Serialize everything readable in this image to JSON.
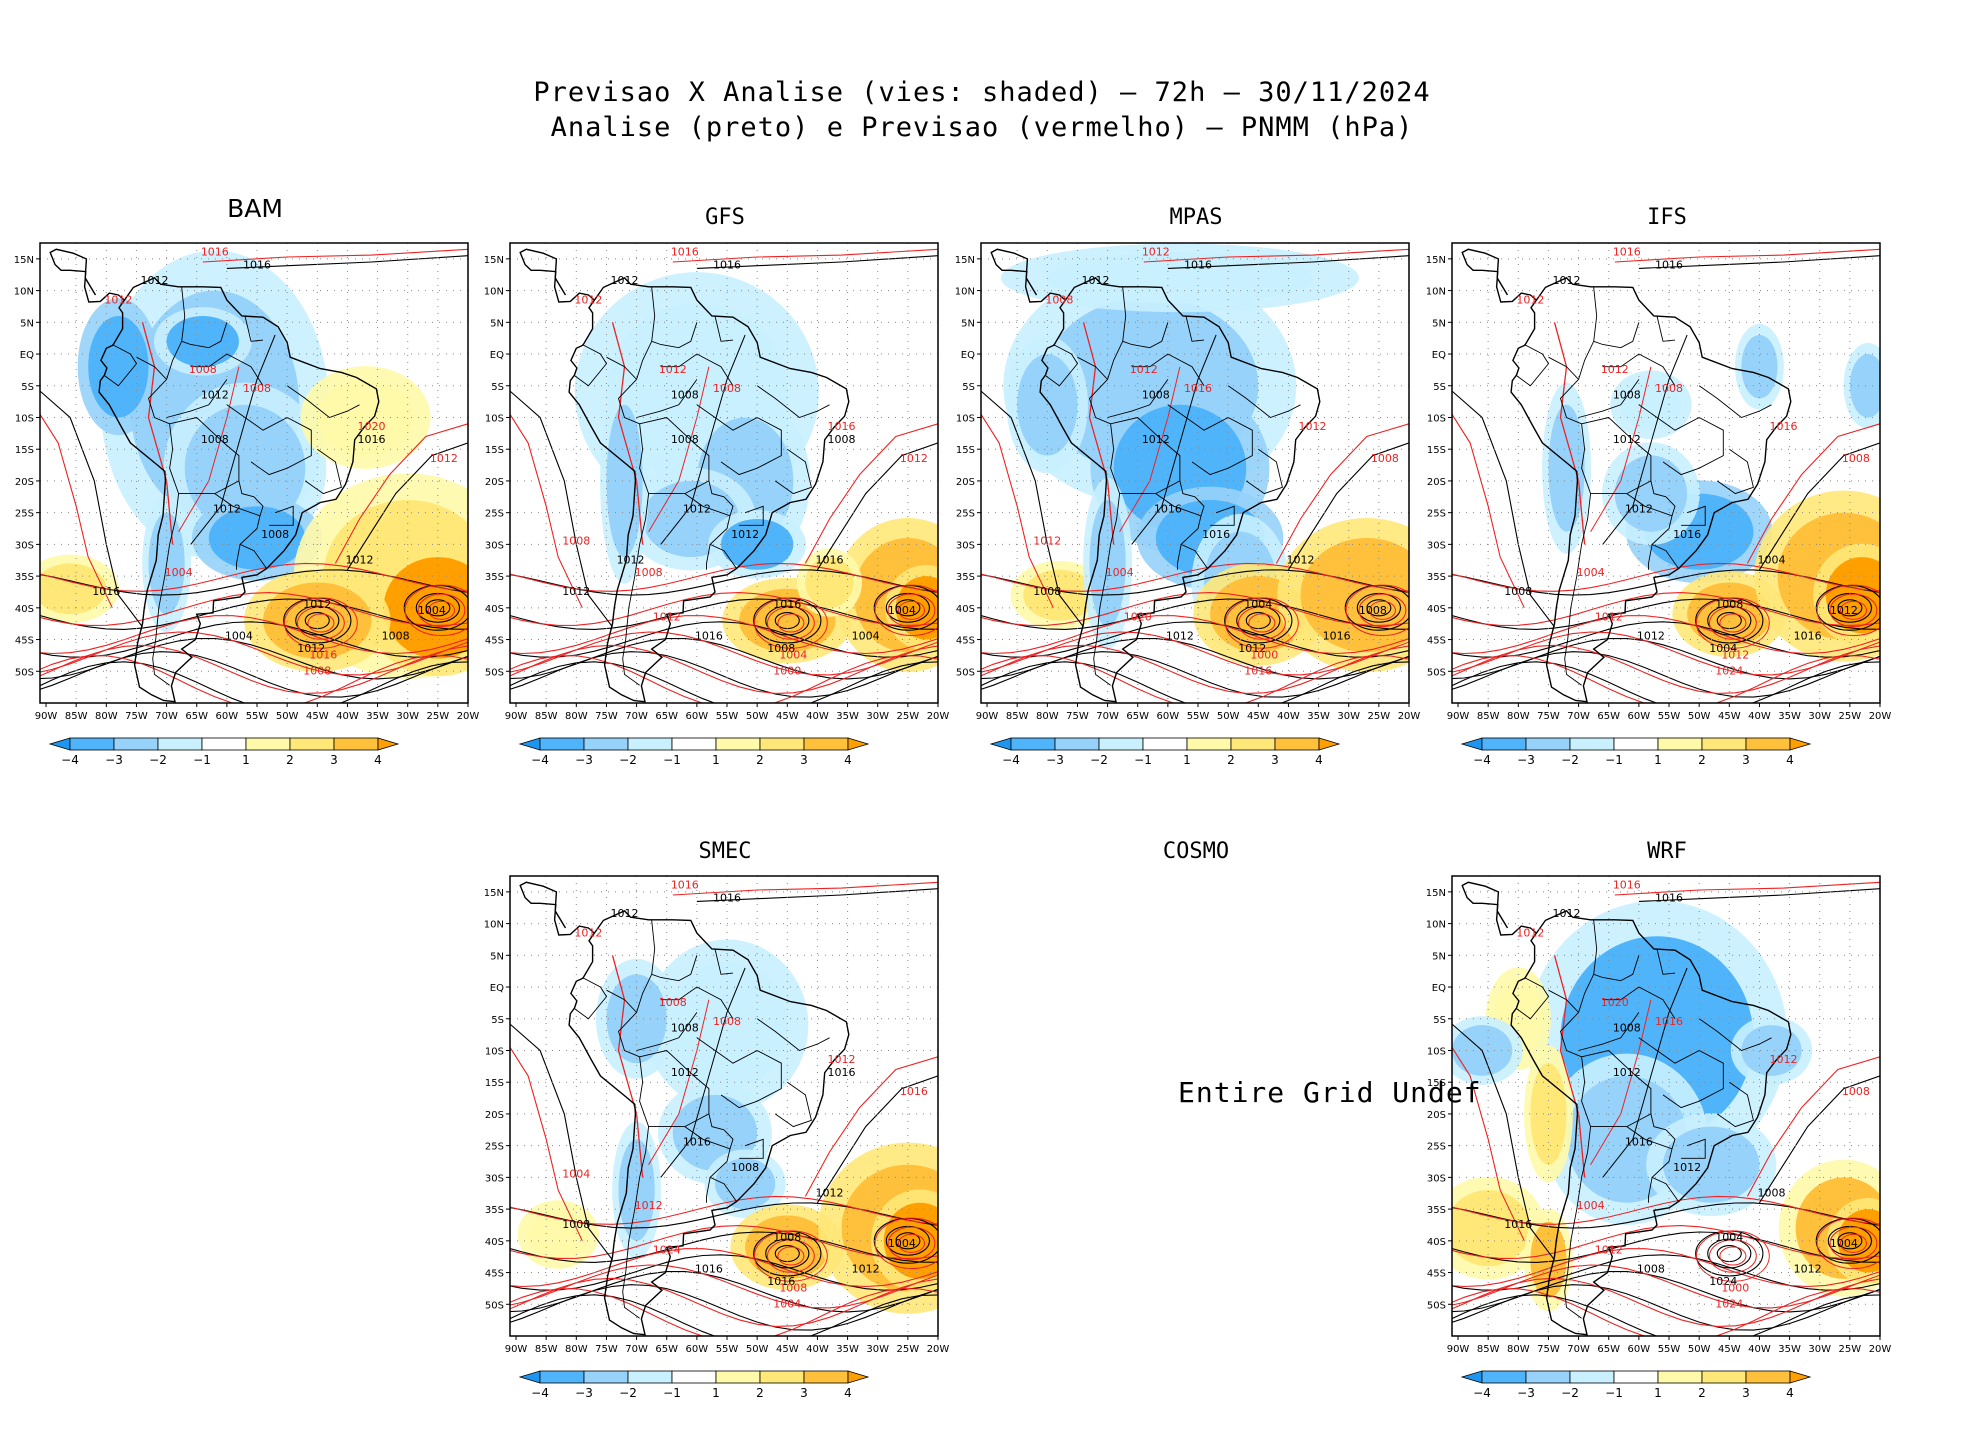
{
  "title": {
    "line1": "Previsao X Analise (vies: shaded) – 72h – 30/11/2024",
    "line2": "Analise (preto) e Previsao (vermelho) – PNMM (hPa)"
  },
  "axes": {
    "lat_ticks": [
      "15N",
      "10N",
      "5N",
      "EQ",
      "5S",
      "10S",
      "15S",
      "20S",
      "25S",
      "30S",
      "35S",
      "40S",
      "45S",
      "50S"
    ],
    "lon_ticks": [
      "90W",
      "85W",
      "80W",
      "75W",
      "70W",
      "65W",
      "60W",
      "55W",
      "50W",
      "45W",
      "40W",
      "35W",
      "30W",
      "25W",
      "20W"
    ]
  },
  "colorbar": {
    "labels": [
      "-4",
      "-3",
      "-2",
      "-1",
      "1",
      "2",
      "3",
      "4"
    ],
    "colors": [
      "#1e96f0",
      "#50b4fa",
      "#96d2fa",
      "#c8f0ff",
      "#ffffff",
      "#fffaaa",
      "#ffe878",
      "#ffc03c",
      "#ffa000"
    ]
  },
  "panels": [
    {
      "model": "BAM",
      "has_data": true,
      "analysis_labels": [
        "1016",
        "1012",
        "1012",
        "1008",
        "1012",
        "1008",
        "1012",
        "1012",
        "1004",
        "1012",
        "1008",
        "1004",
        "1016",
        "1016"
      ],
      "forecast_labels": [
        "1016",
        "1012",
        "1008",
        "1008",
        "1020",
        "1012",
        "1004",
        "1016",
        "1008"
      ]
    },
    {
      "model": "GFS",
      "has_data": true,
      "analysis_labels": [
        "1016",
        "1012",
        "1008",
        "1008",
        "1012",
        "1012",
        "1016",
        "1016",
        "1004",
        "1008",
        "1004",
        "1016",
        "1012",
        "1008",
        "1012"
      ],
      "forecast_labels": [
        "1016",
        "1012",
        "1012",
        "1008",
        "1016",
        "1012",
        "1008",
        "1004",
        "1000",
        "1012",
        "1008"
      ]
    },
    {
      "model": "MPAS",
      "has_data": true,
      "analysis_labels": [
        "1016",
        "1012",
        "1008",
        "1012",
        "1016",
        "1016",
        "1012",
        "1004",
        "1008",
        "1012",
        "1016",
        "1012",
        "1008"
      ],
      "forecast_labels": [
        "1012",
        "1008",
        "1012",
        "1016",
        "1012",
        "1008",
        "1004",
        "1000",
        "1016",
        "1020",
        "1012"
      ]
    },
    {
      "model": "IFS",
      "has_data": true,
      "analysis_labels": [
        "1016",
        "1012",
        "1008",
        "1012",
        "1012",
        "1016",
        "1004",
        "1008",
        "1012",
        "1004",
        "1016",
        "1012",
        "1008"
      ],
      "forecast_labels": [
        "1016",
        "1012",
        "1012",
        "1008",
        "1016",
        "1008",
        "1004",
        "1012",
        "1024",
        "1012"
      ]
    },
    {
      "model": "SMEC",
      "has_data": true,
      "analysis_labels": [
        "1016",
        "1012",
        "1008",
        "1012",
        "1016",
        "1008",
        "1012",
        "1008",
        "1004",
        "1016",
        "1012",
        "1016",
        "1008",
        "1016"
      ],
      "forecast_labels": [
        "1016",
        "1012",
        "1008",
        "1008",
        "1012",
        "1016",
        "1012",
        "1008",
        "1004",
        "1024",
        "1004"
      ]
    },
    {
      "model": "COSMO",
      "has_data": false,
      "message": "Entire Grid Undef"
    },
    {
      "model": "WRF",
      "has_data": true,
      "analysis_labels": [
        "1016",
        "1012",
        "1008",
        "1012",
        "1016",
        "1012",
        "1008",
        "1004",
        "1004",
        "1024",
        "1012",
        "1008",
        "1016"
      ],
      "forecast_labels": [
        "1016",
        "1012",
        "1020",
        "1016",
        "1012",
        "1008",
        "1004",
        "1000",
        "1024",
        "1012"
      ]
    }
  ]
}
